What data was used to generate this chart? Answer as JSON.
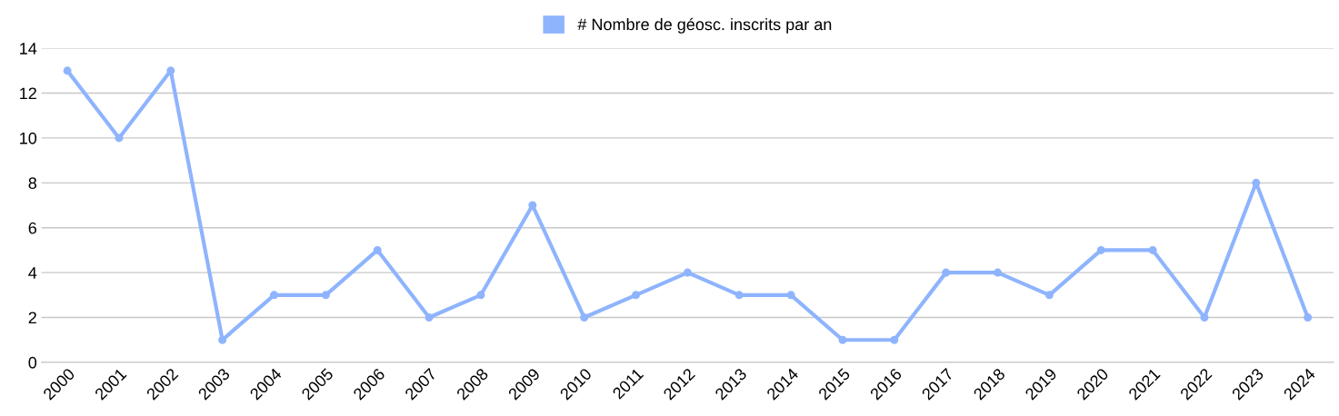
{
  "chart_data": {
    "type": "line",
    "categories": [
      "2000",
      "2001",
      "2002",
      "2003",
      "2004",
      "2005",
      "2006",
      "2007",
      "2008",
      "2009",
      "2010",
      "2011",
      "2012",
      "2013",
      "2014",
      "2015",
      "2016",
      "2017",
      "2018",
      "2019",
      "2020",
      "2021",
      "2022",
      "2023",
      "2024"
    ],
    "series": [
      {
        "name": "# Nombre de géosc. inscrits par an",
        "color": "#8fb4fe",
        "values": [
          13,
          10,
          13,
          1,
          3,
          3,
          5,
          2,
          3,
          7,
          2,
          3,
          4,
          3,
          3,
          1,
          1,
          4,
          4,
          3,
          5,
          5,
          2,
          8,
          2
        ]
      }
    ],
    "ylim": [
      0,
      14
    ],
    "yticks": [
      0,
      2,
      4,
      6,
      8,
      10,
      12,
      14
    ],
    "grid": "y",
    "legend": "top",
    "marker": "circle",
    "line_style": "solid"
  }
}
